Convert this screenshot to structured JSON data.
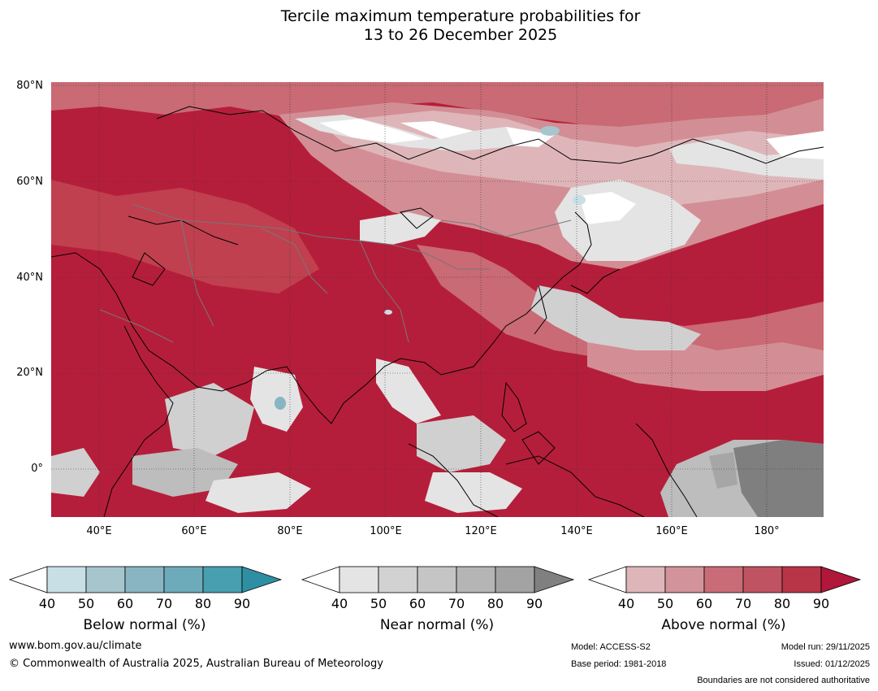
{
  "title": {
    "line1": "Tercile maximum temperature probabilities for",
    "line2": "13 to 26 December 2025"
  },
  "map": {
    "lat_labels": [
      "80°N",
      "60°N",
      "40°N",
      "20°N",
      "0°"
    ],
    "lon_labels": [
      "40°E",
      "60°E",
      "80°E",
      "100°E",
      "120°E",
      "140°E",
      "160°E",
      "180°"
    ],
    "colors": {
      "ocean_base": "#b51e3a",
      "above_90": "#b51e3a",
      "above_80": "#c0404f",
      "above_70": "#c96a74",
      "above_60": "#d38e95",
      "above_50": "#deb6ba",
      "near_50": "#e4e4e4",
      "near_60": "#d0d0d0",
      "near_70": "#bdbdbd",
      "near_80": "#a6a6a6",
      "near_90": "#7f7f7f",
      "below_50": "#c8dfe6",
      "below_60": "#a7c5cd"
    }
  },
  "colorbars": {
    "ticks": [
      "40",
      "50",
      "60",
      "70",
      "80",
      "90"
    ],
    "below": {
      "label": "Below normal (%)",
      "colors": [
        "#c8dfe6",
        "#a7c5cd",
        "#88b5c1",
        "#6dabbb",
        "#479fb0",
        "#2e8fa3"
      ]
    },
    "near": {
      "label": "Near normal (%)",
      "colors": [
        "#e4e4e4",
        "#d2d2d2",
        "#c5c5c5",
        "#b5b5b5",
        "#a3a3a3",
        "#808080"
      ]
    },
    "above": {
      "label": "Above normal (%)",
      "colors": [
        "#deb6ba",
        "#d3939a",
        "#c96c78",
        "#c05361",
        "#b83447",
        "#b0173a"
      ]
    }
  },
  "footer": {
    "website": "www.bom.gov.au/climate",
    "copyright": "© Commonwealth of Australia 2025, Australian Bureau of Meteorology",
    "model": "Model: ACCESS-S2",
    "base_period": "Base period: 1981-2018",
    "model_run": "Model run: 29/11/2025",
    "issued": "Issued: 01/12/2025",
    "disclaimer": "Boundaries are not considered authoritative"
  }
}
